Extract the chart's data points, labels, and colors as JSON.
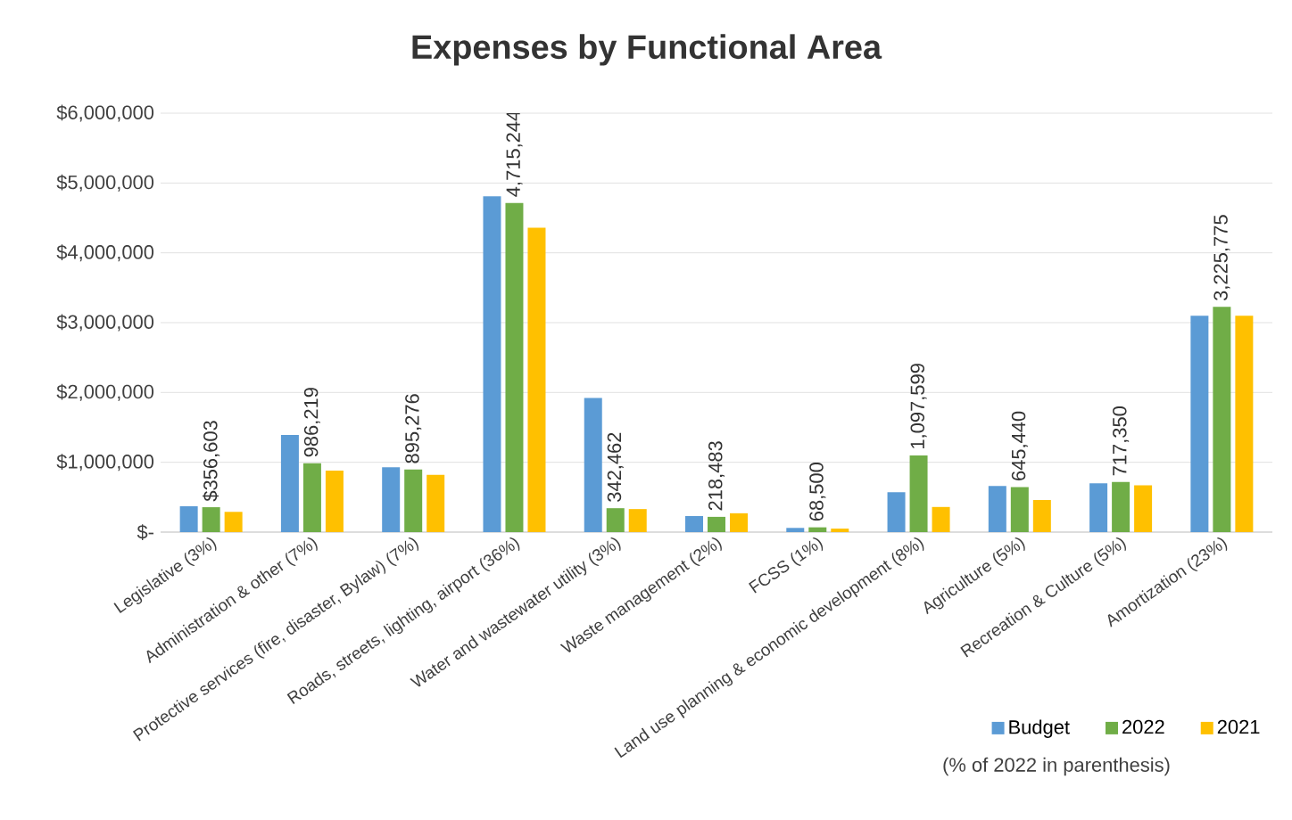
{
  "chart_data": {
    "type": "bar",
    "title": "Expenses by Functional Area",
    "categories": [
      "Legislative (3%)",
      "Administration & other (7%)",
      "Protective services (fire, disaster, Bylaw) (7%)",
      "Roads, streets, lighting, airport (36%)",
      "Water and wastewater utility (3%)",
      "Waste management (2%)",
      "FCSS (1%)",
      "Land use planning & economic development (8%)",
      "Agriculture (5%)",
      "Recreation & Culture (5%)",
      "Amortization (23%)"
    ],
    "series": [
      {
        "name": "Budget",
        "color": "#5b9bd5",
        "values": [
          370000,
          1390000,
          930000,
          4810000,
          1920000,
          230000,
          60000,
          570000,
          660000,
          700000,
          3100000
        ]
      },
      {
        "name": "2022",
        "color": "#70ad47",
        "values": [
          356603,
          986219,
          895276,
          4715244,
          342462,
          218483,
          68500,
          1097599,
          645440,
          717350,
          3225775
        ],
        "value_labels": [
          "$356,603",
          "986,219",
          "895,276",
          "4,715,244",
          "342,462",
          "218,483",
          "68,500",
          "1,097,599",
          "645,440",
          "717,350",
          "3,225,775"
        ]
      },
      {
        "name": "2021",
        "color": "#ffc000",
        "values": [
          290000,
          880000,
          820000,
          4360000,
          330000,
          270000,
          50000,
          360000,
          460000,
          670000,
          3100000
        ]
      }
    ],
    "ylim": [
      0,
      6000000
    ],
    "yticks": [
      {
        "value": 0,
        "label": "$-"
      },
      {
        "value": 1000000,
        "label": "$1,000,000"
      },
      {
        "value": 2000000,
        "label": "$2,000,000"
      },
      {
        "value": 3000000,
        "label": "$3,000,000"
      },
      {
        "value": 4000000,
        "label": "$4,000,000"
      },
      {
        "value": 5000000,
        "label": "$5,000,000"
      },
      {
        "value": 6000000,
        "label": "$6,000,000"
      }
    ],
    "grid": "y",
    "legend": "bottom right",
    "annotations": [
      "(% of 2022 in parenthesis)"
    ]
  }
}
